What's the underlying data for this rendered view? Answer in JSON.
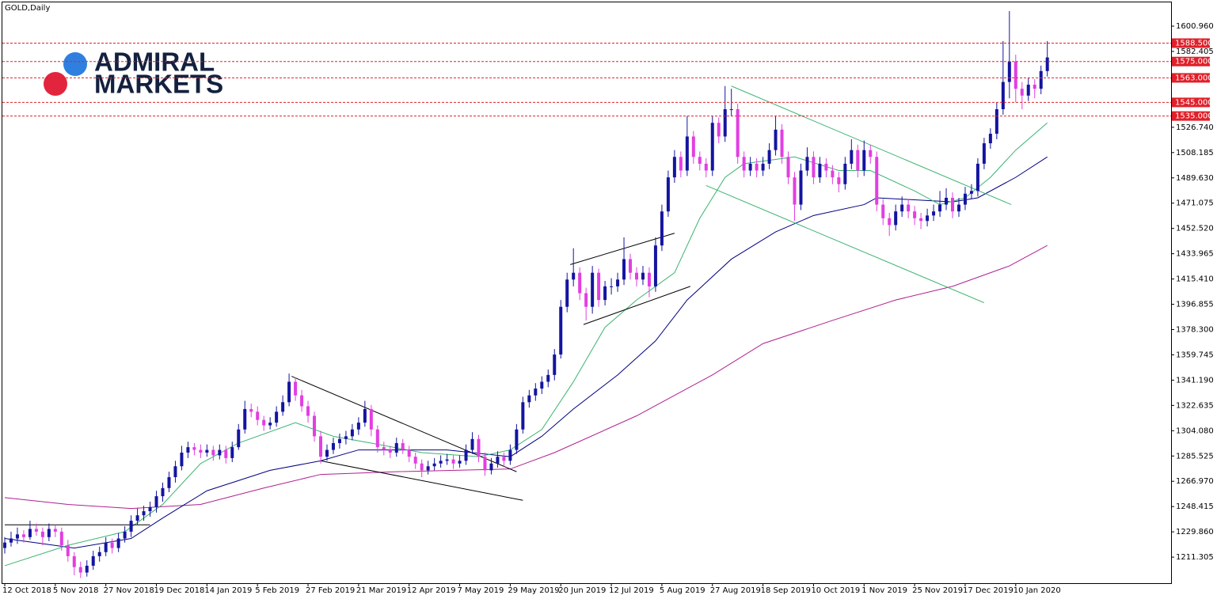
{
  "chart_data": {
    "type": "candlestick",
    "title": "GOLD,Daily",
    "logo": {
      "line1": "ADMIRAL",
      "line2": "MARKETS"
    },
    "up_color": "#1414a0",
    "down_color": "#e23ee2",
    "ylim": [
      1192.2,
      1618.4
    ],
    "yticks": [
      1211.305,
      {
        "value": 1229.86,
        "label": "1229.860"
      },
      1248.415,
      {
        "value": 1266.97,
        "label": "1266.970"
      },
      1285.525,
      {
        "value": 1304.08,
        "label": "1304.080"
      },
      1322.635,
      {
        "value": 1341.19,
        "label": "1341.190"
      },
      1359.745,
      {
        "value": 1378.3,
        "label": "1378.300"
      },
      1396.855,
      {
        "value": 1415.41,
        "label": "1415.410"
      },
      1433.965,
      {
        "value": 1452.52,
        "label": "1452.520"
      },
      1471.075,
      {
        "value": 1489.63,
        "label": "1489.630"
      },
      1508.185,
      {
        "value": 1526.74,
        "label": "1526.740"
      },
      1582.405,
      {
        "value": 1600.96,
        "label": "1600.960"
      }
    ],
    "levels": [
      {
        "value": 1588.5,
        "label": "1588.500"
      },
      {
        "value": 1575,
        "label": "1575.000"
      },
      {
        "value": 1563,
        "label": "1563.000"
      },
      {
        "value": 1545,
        "label": "1545.000"
      },
      {
        "value": 1535,
        "label": "1535.000"
      }
    ],
    "level_color": "#e0202a",
    "categories": [
      "12 Oct 2018",
      null,
      null,
      null,
      null,
      null,
      null,
      null,
      "5 Nov 2018",
      null,
      null,
      null,
      null,
      null,
      null,
      null,
      "27 Nov 2018",
      null,
      null,
      null,
      null,
      null,
      null,
      null,
      "19 Dec 2018",
      null,
      null,
      null,
      null,
      null,
      null,
      null,
      "14 Jan 2019",
      null,
      null,
      null,
      null,
      null,
      null,
      null,
      "5 Feb 2019",
      null,
      null,
      null,
      null,
      null,
      null,
      null,
      "27 Feb 2019",
      null,
      null,
      null,
      null,
      null,
      null,
      null,
      "21 Mar 2019",
      null,
      null,
      null,
      null,
      null,
      null,
      null,
      "12 Apr 2019",
      null,
      null,
      null,
      null,
      null,
      null,
      null,
      "7 May 2019",
      null,
      null,
      null,
      null,
      null,
      null,
      null,
      "29 May 2019",
      null,
      null,
      null,
      null,
      null,
      null,
      null,
      "20 Jun 2019",
      null,
      null,
      null,
      null,
      null,
      null,
      null,
      "12 Jul 2019",
      null,
      null,
      null,
      null,
      null,
      null,
      null,
      "5 Aug 2019",
      null,
      null,
      null,
      null,
      null,
      null,
      null,
      "27 Aug 2019",
      null,
      null,
      null,
      null,
      null,
      null,
      null,
      "18 Sep 2019",
      null,
      null,
      null,
      null,
      null,
      null,
      null,
      "10 Oct 2019",
      null,
      null,
      null,
      null,
      null,
      null,
      null,
      "1 Nov 2019",
      null,
      null,
      null,
      null,
      null,
      null,
      null,
      "25 Nov 2019",
      null,
      null,
      null,
      null,
      null,
      null,
      null,
      "17 Dec 2019",
      null,
      null,
      null,
      null,
      null,
      null,
      null,
      "10 Jan 2020",
      null,
      null,
      null,
      null,
      null
    ],
    "ohlc": [
      [
        1218,
        1226,
        1214,
        1222
      ],
      [
        1222,
        1230,
        1219,
        1225
      ],
      [
        1225,
        1233,
        1221,
        1228
      ],
      [
        1228,
        1231,
        1222,
        1226
      ],
      [
        1226,
        1238,
        1224,
        1232
      ],
      [
        1232,
        1236,
        1227,
        1230
      ],
      [
        1230,
        1233,
        1220,
        1226
      ],
      [
        1226,
        1236,
        1223,
        1232
      ],
      [
        1232,
        1235,
        1226,
        1230
      ],
      [
        1230,
        1233,
        1216,
        1220
      ],
      [
        1220,
        1224,
        1208,
        1212
      ],
      [
        1212,
        1215,
        1198,
        1204
      ],
      [
        1204,
        1208,
        1196,
        1200
      ],
      [
        1200,
        1209,
        1197,
        1205
      ],
      [
        1205,
        1216,
        1202,
        1212
      ],
      [
        1212,
        1219,
        1208,
        1215
      ],
      [
        1215,
        1226,
        1212,
        1222
      ],
      [
        1222,
        1225,
        1214,
        1218
      ],
      [
        1218,
        1229,
        1215,
        1225
      ],
      [
        1225,
        1234,
        1222,
        1230
      ],
      [
        1230,
        1242,
        1226,
        1238
      ],
      [
        1238,
        1247,
        1235,
        1242
      ],
      [
        1242,
        1249,
        1238,
        1245
      ],
      [
        1245,
        1252,
        1241,
        1248
      ],
      [
        1248,
        1260,
        1244,
        1256
      ],
      [
        1256,
        1266,
        1252,
        1262
      ],
      [
        1262,
        1274,
        1259,
        1270
      ],
      [
        1270,
        1282,
        1266,
        1278
      ],
      [
        1278,
        1293,
        1275,
        1288
      ],
      [
        1288,
        1296,
        1284,
        1292
      ],
      [
        1292,
        1295,
        1286,
        1290
      ],
      [
        1290,
        1294,
        1284,
        1288
      ],
      [
        1288,
        1294,
        1285,
        1290
      ],
      [
        1290,
        1293,
        1282,
        1286
      ],
      [
        1286,
        1294,
        1283,
        1290
      ],
      [
        1290,
        1293,
        1280,
        1284
      ],
      [
        1284,
        1296,
        1281,
        1292
      ],
      [
        1292,
        1309,
        1290,
        1305
      ],
      [
        1305,
        1326,
        1302,
        1320
      ],
      [
        1320,
        1324,
        1314,
        1318
      ],
      [
        1318,
        1322,
        1308,
        1312
      ],
      [
        1312,
        1315,
        1304,
        1308
      ],
      [
        1308,
        1314,
        1305,
        1310
      ],
      [
        1310,
        1322,
        1307,
        1318
      ],
      [
        1318,
        1330,
        1315,
        1325
      ],
      [
        1325,
        1346,
        1322,
        1340
      ],
      [
        1340,
        1343,
        1326,
        1330
      ],
      [
        1330,
        1334,
        1318,
        1322
      ],
      [
        1322,
        1326,
        1310,
        1315
      ],
      [
        1315,
        1318,
        1296,
        1300
      ],
      [
        1300,
        1304,
        1280,
        1285
      ],
      [
        1285,
        1294,
        1282,
        1290
      ],
      [
        1290,
        1299,
        1287,
        1295
      ],
      [
        1295,
        1302,
        1291,
        1298
      ],
      [
        1298,
        1304,
        1294,
        1300
      ],
      [
        1300,
        1309,
        1297,
        1305
      ],
      [
        1305,
        1314,
        1301,
        1310
      ],
      [
        1310,
        1326,
        1307,
        1320
      ],
      [
        1320,
        1323,
        1300,
        1305
      ],
      [
        1305,
        1308,
        1288,
        1292
      ],
      [
        1292,
        1296,
        1286,
        1290
      ],
      [
        1290,
        1293,
        1284,
        1288
      ],
      [
        1288,
        1299,
        1285,
        1295
      ],
      [
        1295,
        1298,
        1287,
        1290
      ],
      [
        1290,
        1293,
        1281,
        1285
      ],
      [
        1285,
        1288,
        1276,
        1280
      ],
      [
        1280,
        1283,
        1270,
        1275
      ],
      [
        1275,
        1282,
        1272,
        1278
      ],
      [
        1278,
        1284,
        1275,
        1280
      ],
      [
        1280,
        1286,
        1277,
        1282
      ],
      [
        1282,
        1287,
        1279,
        1283
      ],
      [
        1283,
        1286,
        1276,
        1280
      ],
      [
        1280,
        1286,
        1277,
        1282
      ],
      [
        1282,
        1294,
        1279,
        1290
      ],
      [
        1290,
        1303,
        1287,
        1298
      ],
      [
        1298,
        1301,
        1281,
        1285
      ],
      [
        1285,
        1288,
        1271,
        1275
      ],
      [
        1275,
        1284,
        1272,
        1280
      ],
      [
        1280,
        1289,
        1277,
        1285
      ],
      [
        1285,
        1288,
        1278,
        1282
      ],
      [
        1282,
        1294,
        1279,
        1290
      ],
      [
        1290,
        1309,
        1287,
        1305
      ],
      [
        1305,
        1329,
        1302,
        1325
      ],
      [
        1325,
        1334,
        1321,
        1330
      ],
      [
        1330,
        1339,
        1326,
        1335
      ],
      [
        1335,
        1344,
        1331,
        1340
      ],
      [
        1340,
        1349,
        1336,
        1345
      ],
      [
        1345,
        1364,
        1341,
        1360
      ],
      [
        1360,
        1400,
        1357,
        1395
      ],
      [
        1395,
        1420,
        1391,
        1415
      ],
      [
        1415,
        1438,
        1410,
        1420
      ],
      [
        1420,
        1424,
        1400,
        1405
      ],
      [
        1405,
        1409,
        1385,
        1395
      ],
      [
        1395,
        1425,
        1390,
        1420
      ],
      [
        1420,
        1423,
        1395,
        1400
      ],
      [
        1400,
        1414,
        1396,
        1410
      ],
      [
        1410,
        1416,
        1404,
        1410
      ],
      [
        1410,
        1420,
        1406,
        1415
      ],
      [
        1415,
        1446,
        1411,
        1430
      ],
      [
        1430,
        1434,
        1415,
        1420
      ],
      [
        1420,
        1424,
        1410,
        1415
      ],
      [
        1415,
        1425,
        1411,
        1420
      ],
      [
        1420,
        1424,
        1402,
        1410
      ],
      [
        1410,
        1446,
        1406,
        1440
      ],
      [
        1440,
        1470,
        1436,
        1465
      ],
      [
        1465,
        1495,
        1461,
        1490
      ],
      [
        1490,
        1510,
        1486,
        1505
      ],
      [
        1505,
        1509,
        1490,
        1495
      ],
      [
        1495,
        1535,
        1491,
        1520
      ],
      [
        1520,
        1524,
        1500,
        1505
      ],
      [
        1505,
        1509,
        1495,
        1500
      ],
      [
        1500,
        1504,
        1490,
        1495
      ],
      [
        1495,
        1535,
        1491,
        1530
      ],
      [
        1530,
        1534,
        1515,
        1520
      ],
      [
        1520,
        1557,
        1516,
        1540
      ],
      [
        1540,
        1555,
        1535,
        1540
      ],
      [
        1540,
        1544,
        1500,
        1505
      ],
      [
        1505,
        1509,
        1490,
        1495
      ],
      [
        1495,
        1505,
        1491,
        1500
      ],
      [
        1500,
        1504,
        1490,
        1495
      ],
      [
        1495,
        1505,
        1491,
        1500
      ],
      [
        1500,
        1515,
        1496,
        1510
      ],
      [
        1510,
        1535,
        1506,
        1525
      ],
      [
        1525,
        1529,
        1500,
        1505
      ],
      [
        1505,
        1509,
        1485,
        1490
      ],
      [
        1490,
        1494,
        1458,
        1470
      ],
      [
        1470,
        1500,
        1466,
        1495
      ],
      [
        1495,
        1512,
        1491,
        1505
      ],
      [
        1505,
        1509,
        1485,
        1490
      ],
      [
        1490,
        1505,
        1486,
        1500
      ],
      [
        1500,
        1504,
        1490,
        1495
      ],
      [
        1495,
        1499,
        1485,
        1490
      ],
      [
        1490,
        1494,
        1479,
        1485
      ],
      [
        1485,
        1505,
        1481,
        1500
      ],
      [
        1500,
        1518,
        1496,
        1510
      ],
      [
        1510,
        1514,
        1490,
        1495
      ],
      [
        1495,
        1517,
        1491,
        1510
      ],
      [
        1510,
        1514,
        1500,
        1505
      ],
      [
        1505,
        1509,
        1465,
        1470
      ],
      [
        1470,
        1474,
        1455,
        1460
      ],
      [
        1460,
        1464,
        1447,
        1455
      ],
      [
        1455,
        1470,
        1451,
        1465
      ],
      [
        1465,
        1476,
        1461,
        1470
      ],
      [
        1470,
        1474,
        1460,
        1465
      ],
      [
        1465,
        1469,
        1455,
        1460
      ],
      [
        1460,
        1464,
        1452,
        1458
      ],
      [
        1458,
        1467,
        1454,
        1462
      ],
      [
        1462,
        1470,
        1458,
        1465
      ],
      [
        1465,
        1480,
        1461,
        1470
      ],
      [
        1470,
        1482,
        1466,
        1475
      ],
      [
        1475,
        1479,
        1460,
        1465
      ],
      [
        1465,
        1475,
        1461,
        1470
      ],
      [
        1470,
        1483,
        1466,
        1478
      ],
      [
        1478,
        1485,
        1474,
        1480
      ],
      [
        1480,
        1504,
        1476,
        1500
      ],
      [
        1500,
        1519,
        1496,
        1515
      ],
      [
        1515,
        1526,
        1511,
        1522
      ],
      [
        1522,
        1545,
        1518,
        1540
      ],
      [
        1540,
        1590,
        1536,
        1560
      ],
      [
        1560,
        1612,
        1548,
        1575
      ],
      [
        1575,
        1580,
        1545,
        1555
      ],
      [
        1555,
        1560,
        1540,
        1550
      ],
      [
        1550,
        1563,
        1546,
        1558
      ],
      [
        1558,
        1562,
        1548,
        1555
      ],
      [
        1555,
        1572,
        1551,
        1568
      ],
      [
        1568,
        1590,
        1564,
        1578
      ]
    ],
    "lines": [
      {
        "color": "#b0208f",
        "x": [
          0,
          10,
          20,
          31,
          41,
          50,
          62,
          80,
          87,
          100,
          112,
          120,
          131,
          141,
          150,
          159,
          165
        ],
        "values": [
          1255,
          1250,
          1247,
          1250,
          1262,
          1272,
          1274,
          1276,
          1288,
          1315,
          1345,
          1368,
          1385,
          1400,
          1410,
          1425,
          1440
        ]
      },
      {
        "color": "#000080",
        "x": [
          0,
          11,
          20,
          25,
          32,
          42,
          50,
          56,
          70,
          80,
          85,
          90,
          97,
          103,
          108,
          115,
          122,
          128,
          136,
          138,
          150,
          154,
          160,
          165
        ],
        "values": [
          1225,
          1218,
          1225,
          1240,
          1260,
          1275,
          1282,
          1290,
          1290,
          1285,
          1300,
          1320,
          1345,
          1370,
          1400,
          1430,
          1450,
          1462,
          1470,
          1475,
          1472,
          1475,
          1490,
          1505
        ]
      },
      {
        "color": "#3cb371",
        "x": [
          0,
          10,
          19,
          25,
          31,
          37,
          46,
          52,
          58,
          66,
          75,
          80,
          85,
          90,
          95,
          100,
          106,
          110,
          114,
          117,
          125,
          132,
          137,
          144,
          148,
          152,
          156,
          160,
          165
        ],
        "values": [
          1205,
          1220,
          1230,
          1250,
          1280,
          1295,
          1310,
          1300,
          1295,
          1288,
          1285,
          1290,
          1305,
          1340,
          1380,
          1400,
          1420,
          1460,
          1490,
          1500,
          1505,
          1495,
          1495,
          1480,
          1470,
          1475,
          1490,
          1510,
          1530
        ]
      }
    ],
    "trendlines": [
      {
        "color": "#000000",
        "x": [
          0,
          23
        ],
        "values": [
          1235,
          1235
        ]
      },
      {
        "color": "#000000",
        "x": [
          45.4,
          81
        ],
        "values": [
          1344,
          1274
        ]
      },
      {
        "color": "#000000",
        "x": [
          50,
          82
        ],
        "values": [
          1282,
          1253
        ]
      },
      {
        "color": "#000000",
        "x": [
          89.5,
          106
        ],
        "values": [
          1426,
          1449
        ]
      },
      {
        "color": "#000000",
        "x": [
          91.6,
          108.5
        ],
        "values": [
          1382,
          1410
        ]
      },
      {
        "color": "#3cb371",
        "x": [
          115,
          159.3
        ],
        "values": [
          1557,
          1470
        ]
      },
      {
        "color": "#3cb371",
        "x": [
          111,
          155
        ],
        "values": [
          1484,
          1398
        ]
      }
    ]
  }
}
